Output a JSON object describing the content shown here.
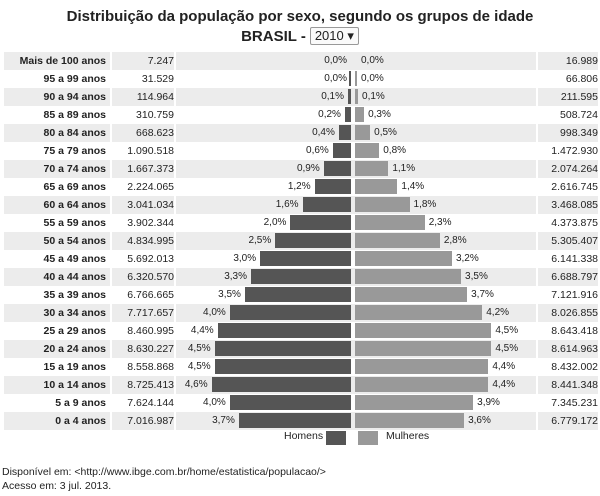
{
  "chart_data": {
    "type": "bar",
    "title": "Distribuição da população por sexo, segundo os grupos de idade",
    "subtitle_prefix": "BRASIL -",
    "year_selector": "2010",
    "categories": [
      "Mais de 100 anos",
      "95 a 99 anos",
      "90 a 94 anos",
      "85 a 89 anos",
      "80 a 84 anos",
      "75 a 79 anos",
      "70 a 74 anos",
      "65 a 69 anos",
      "60 a 64 anos",
      "55 a 59 anos",
      "50 a 54 anos",
      "45 a 49 anos",
      "40 a 44 anos",
      "35 a 39 anos",
      "30 a 34 anos",
      "25 a 29 anos",
      "20 a 24 anos",
      "15 a 19 anos",
      "10 a 14 anos",
      "5 a 9 anos",
      "0 a 4 anos"
    ],
    "series": [
      {
        "name": "Homens",
        "color": "#555555",
        "counts": [
          "7.247",
          "31.529",
          "114.964",
          "310.759",
          "668.623",
          "1.090.518",
          "1.667.373",
          "2.224.065",
          "3.041.034",
          "3.902.344",
          "4.834.995",
          "5.692.013",
          "6.320.570",
          "6.766.665",
          "7.717.657",
          "8.460.995",
          "8.630.227",
          "8.558.868",
          "8.725.413",
          "7.624.144",
          "7.016.987"
        ],
        "percent": [
          0.0,
          0.0,
          0.1,
          0.2,
          0.4,
          0.6,
          0.9,
          1.2,
          1.6,
          2.0,
          2.5,
          3.0,
          3.3,
          3.5,
          4.0,
          4.4,
          4.5,
          4.5,
          4.6,
          4.0,
          3.7
        ],
        "percent_labels": [
          "0,0%",
          "0,0%",
          "0,1%",
          "0,2%",
          "0,4%",
          "0,6%",
          "0,9%",
          "1,2%",
          "1,6%",
          "2,0%",
          "2,5%",
          "3,0%",
          "3,3%",
          "3,5%",
          "4,0%",
          "4,4%",
          "4,5%",
          "4,5%",
          "4,6%",
          "4,0%",
          "3,7%"
        ]
      },
      {
        "name": "Mulheres",
        "color": "#999999",
        "counts": [
          "16.989",
          "66.806",
          "211.595",
          "508.724",
          "998.349",
          "1.472.930",
          "2.074.264",
          "2.616.745",
          "3.468.085",
          "4.373.875",
          "5.305.407",
          "6.141.338",
          "6.688.797",
          "7.121.916",
          "8.026.855",
          "8.643.418",
          "8.614.963",
          "8.432.002",
          "8.441.348",
          "7.345.231",
          "6.779.172"
        ],
        "percent": [
          0.0,
          0.0,
          0.1,
          0.3,
          0.5,
          0.8,
          1.1,
          1.4,
          1.8,
          2.3,
          2.8,
          3.2,
          3.5,
          3.7,
          4.2,
          4.5,
          4.5,
          4.4,
          4.4,
          3.9,
          3.6
        ],
        "percent_labels": [
          "0,0%",
          "0,0%",
          "0,1%",
          "0,3%",
          "0,5%",
          "0,8%",
          "1,1%",
          "1,4%",
          "1,8%",
          "2,3%",
          "2,8%",
          "3,2%",
          "3,5%",
          "3,7%",
          "4,2%",
          "4,5%",
          "4,5%",
          "4,4%",
          "4,4%",
          "3,9%",
          "3,6%"
        ]
      }
    ],
    "legend": "bottom"
  },
  "footer": {
    "line1": "Disponível em: <http://www.ibge.com.br/home/estatistica/populacao/>",
    "line2": "Acesso em: 3 jul. 2013."
  }
}
